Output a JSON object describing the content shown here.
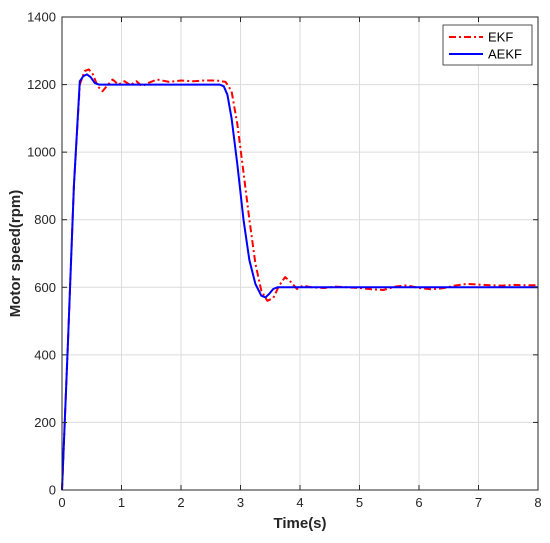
{
  "chart_data": {
    "type": "line",
    "title": "",
    "xlabel": "Time(s)",
    "ylabel": "Motor speed(rpm)",
    "xlim": [
      0,
      8
    ],
    "ylim": [
      0,
      1400
    ],
    "xticks": [
      "0",
      "1",
      "2",
      "3",
      "4",
      "5",
      "6",
      "7",
      "8"
    ],
    "yticks": [
      "0",
      "200",
      "400",
      "600",
      "800",
      "1000",
      "1200",
      "1400"
    ],
    "grid": true,
    "legend_position": "top-right",
    "series": [
      {
        "name": "EKF",
        "color": "#ff0000",
        "dash": "dash-dot",
        "x": [
          0,
          0.1,
          0.2,
          0.3,
          0.38,
          0.45,
          0.52,
          0.6,
          0.68,
          0.75,
          0.85,
          0.95,
          1.05,
          1.15,
          1.25,
          1.35,
          1.45,
          1.6,
          1.8,
          2.0,
          2.2,
          2.4,
          2.6,
          2.75,
          2.85,
          2.95,
          3.05,
          3.15,
          3.25,
          3.35,
          3.45,
          3.55,
          3.65,
          3.75,
          3.85,
          3.95,
          4.05,
          4.2,
          4.4,
          4.6,
          4.8,
          5.0,
          5.2,
          5.4,
          5.6,
          5.8,
          6.0,
          6.2,
          6.4,
          6.6,
          6.8,
          7.0,
          7.2,
          7.4,
          7.6,
          7.8,
          8.0
        ],
        "y": [
          0,
          440,
          900,
          1200,
          1240,
          1245,
          1230,
          1195,
          1180,
          1195,
          1215,
          1200,
          1210,
          1198,
          1210,
          1195,
          1205,
          1215,
          1208,
          1212,
          1210,
          1212,
          1212,
          1208,
          1180,
          1080,
          940,
          800,
          670,
          590,
          560,
          568,
          605,
          630,
          615,
          595,
          605,
          600,
          598,
          602,
          600,
          598,
          594,
          592,
          602,
          606,
          598,
          594,
          597,
          605,
          610,
          608,
          606,
          605,
          607,
          606,
          606
        ]
      },
      {
        "name": "AEKF",
        "color": "#0000ff",
        "dash": "solid",
        "x": [
          0,
          0.1,
          0.2,
          0.3,
          0.36,
          0.42,
          0.48,
          0.55,
          0.62,
          0.7,
          1.0,
          1.5,
          2.0,
          2.5,
          2.65,
          2.72,
          2.78,
          2.85,
          2.95,
          3.05,
          3.15,
          3.25,
          3.35,
          3.42,
          3.48,
          3.55,
          3.62,
          3.7,
          4.0,
          5.0,
          6.0,
          7.0,
          8.0
        ],
        "y": [
          0,
          440,
          900,
          1210,
          1225,
          1230,
          1222,
          1205,
          1200,
          1200,
          1200,
          1200,
          1200,
          1200,
          1200,
          1195,
          1170,
          1100,
          960,
          800,
          680,
          610,
          575,
          570,
          580,
          595,
          600,
          600,
          600,
          600,
          600,
          600,
          600
        ]
      }
    ]
  }
}
